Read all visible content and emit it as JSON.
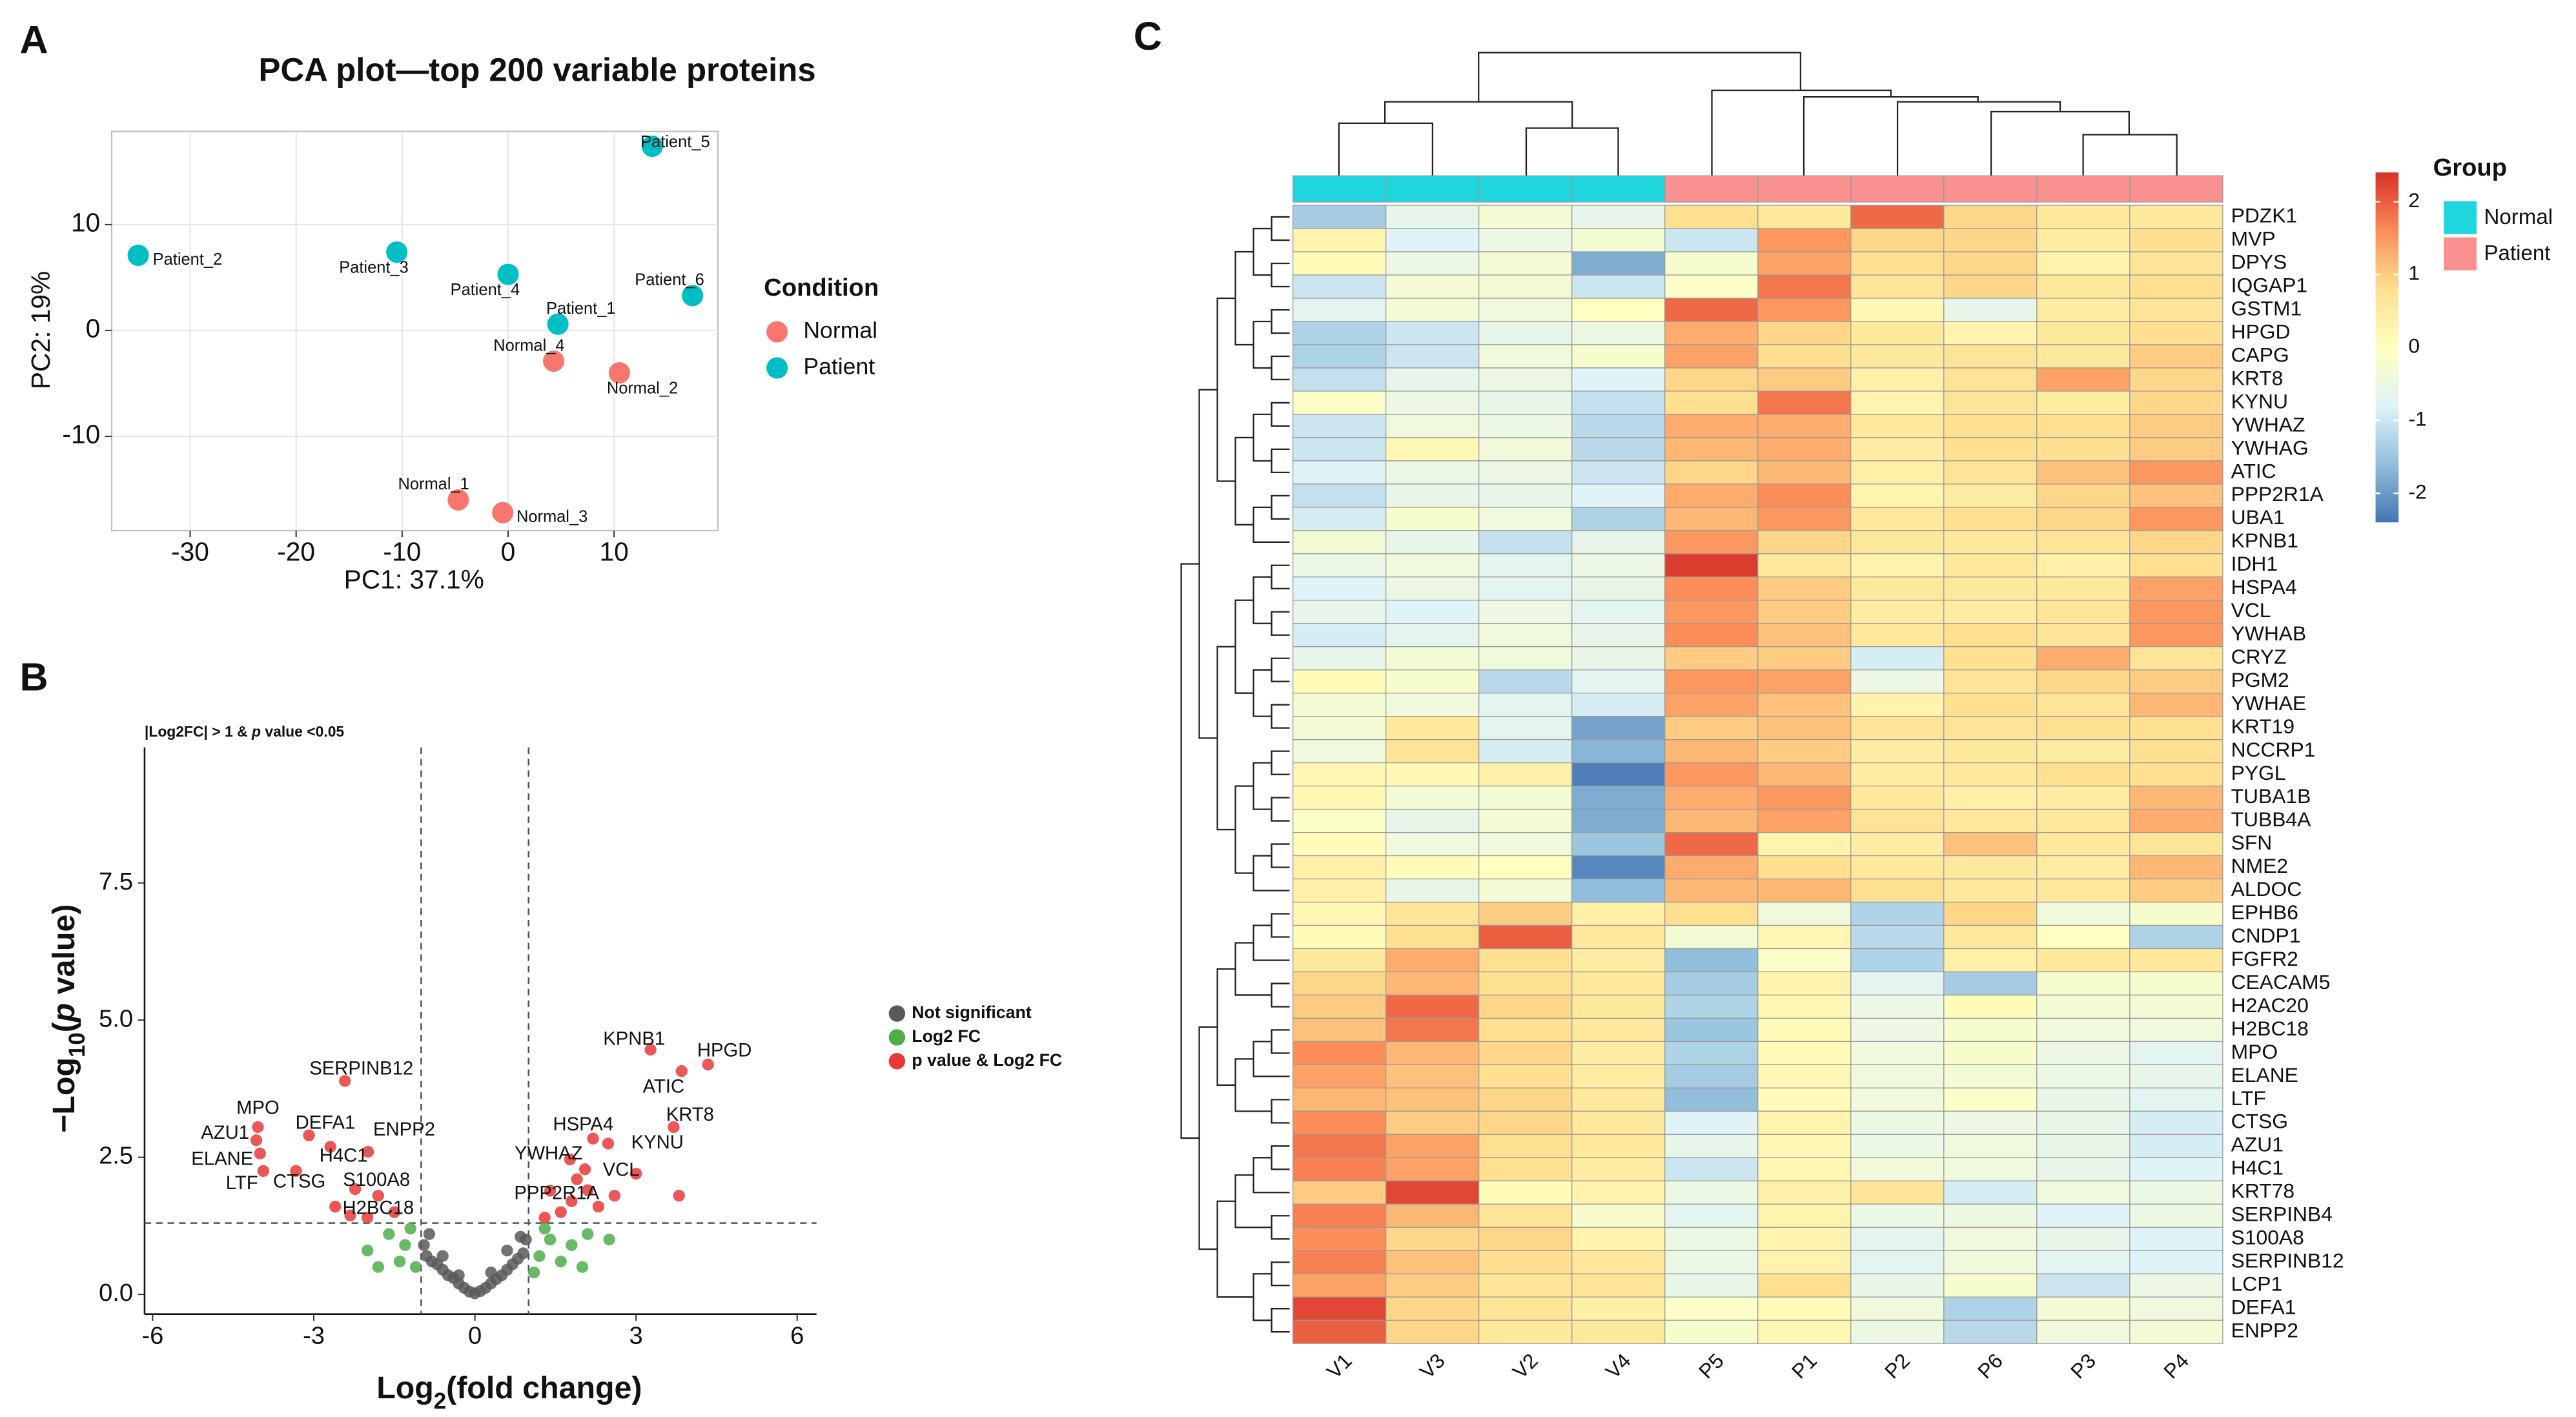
{
  "chart_data": [
    {
      "type": "scatter",
      "panel_label": "A",
      "title": "PCA plot—top 200 variable proteins",
      "xlabel": "PC1: 37.1%",
      "ylabel": "PC2: 19%",
      "xlim": [
        -37.4,
        19.8
      ],
      "ylim": [
        -18.9,
        18.8
      ],
      "xticks": [
        -30,
        -20,
        -10,
        0,
        10
      ],
      "yticks": [
        -10,
        0,
        10
      ],
      "grid": true,
      "legend_title": "Condition",
      "series": [
        {
          "name": "Normal",
          "color": "#f8766d",
          "labels": [
            "Normal_1",
            "Normal_2",
            "Normal_3",
            "Normal_4"
          ],
          "x": [
            -4.7,
            10.5,
            -0.5,
            4.3
          ],
          "values": [
            -16.0,
            -4.0,
            -17.2,
            -2.9
          ]
        },
        {
          "name": "Patient",
          "color": "#00bfc4",
          "labels": [
            "Patient_1",
            "Patient_2",
            "Patient_3",
            "Patient_4",
            "Patient_5",
            "Patient_6"
          ],
          "x": [
            4.7,
            -34.9,
            -10.5,
            0,
            13.6,
            17.4
          ],
          "values": [
            0.6,
            7.1,
            7.4,
            5.3,
            17.4,
            3.3
          ]
        }
      ]
    },
    {
      "type": "scatter",
      "panel_label": "B",
      "title": [
        "|Log2FC| > 1 & ",
        "p",
        " value <0.05"
      ],
      "xlabel": [
        "Log",
        "2",
        "(fold change)"
      ],
      "ylabel": [
        "−Log",
        "10",
        "(",
        "p",
        " value)"
      ],
      "xlim": [
        -6.15,
        6.36
      ],
      "ylim": [
        -0.36,
        9.97
      ],
      "xticks": [
        -6,
        -3,
        0,
        3,
        6
      ],
      "yticks": [
        {
          "value": 0,
          "label": "0.0"
        },
        2.5,
        {
          "value": 5,
          "label": "5.0"
        },
        7.5
      ],
      "grid": false,
      "vlines": [
        -1,
        1
      ],
      "hline": 1.3,
      "series": [
        {
          "name": "Not significant",
          "color": "#595959",
          "x": [
            -0.95,
            -0.9,
            -0.85,
            -0.8,
            -0.7,
            -0.6,
            -0.6,
            -0.5,
            -0.4,
            -0.3,
            -0.3,
            -0.2,
            -0.1,
            0,
            0.1,
            0.2,
            0.3,
            0.3,
            0.4,
            0.5,
            0.6,
            0.6,
            0.7,
            0.8,
            0.85,
            0.9,
            0.95
          ],
          "values": [
            0.9,
            0.7,
            1.1,
            0.6,
            0.55,
            0.45,
            0.7,
            0.35,
            0.3,
            0.2,
            0.35,
            0.12,
            0.05,
            0.02,
            0.06,
            0.12,
            0.2,
            0.4,
            0.28,
            0.35,
            0.45,
            0.8,
            0.55,
            0.65,
            1.05,
            0.75,
            1.0
          ]
        },
        {
          "name": "Log2 FC",
          "color": "#4fae4a",
          "x": [
            -1.3,
            -1.6,
            -1.4,
            -2.0,
            -1.2,
            -1.8,
            -1.1,
            1.2,
            1.4,
            1.6,
            1.8,
            2.1,
            1.3,
            2.0,
            2.5,
            1.1
          ],
          "values": [
            0.9,
            1.1,
            0.6,
            0.8,
            1.2,
            0.5,
            0.5,
            0.7,
            1.0,
            0.6,
            0.9,
            1.1,
            1.2,
            0.5,
            1.0,
            0.4
          ]
        },
        {
          "name": "p value & Log2 FC",
          "color": "#e8393a",
          "labels": [
            "KPNB1",
            "HPGD",
            "ATIC",
            "KRT8",
            "HSPA4",
            "KYNU",
            "YWHAZ",
            "VCL",
            "PPP2R1A",
            "SERPINB12",
            "MPO",
            "AZU1",
            "DEFA1",
            "H4C1",
            "ENPP2",
            "ELANE",
            "LTF",
            "CTSG",
            "S100A8",
            "H2BC18",
            null,
            null,
            null,
            null,
            null,
            null,
            null,
            null,
            null,
            null,
            null,
            null,
            null
          ],
          "x": [
            3.27,
            4.34,
            3.85,
            3.7,
            2.2,
            2.48,
            1.77,
            2.05,
            1.4,
            -2.42,
            -4.04,
            -4.07,
            -3.09,
            -2.69,
            -1.99,
            -4.0,
            -3.94,
            -3.33,
            -2.23,
            -2.32,
            1.6,
            1.8,
            2.1,
            2.6,
            3.0,
            1.3,
            2.3,
            1.9,
            -1.5,
            -2.0,
            -1.8,
            -2.6,
            3.8
          ],
          "values": [
            4.46,
            4.19,
            4.07,
            3.05,
            2.84,
            2.75,
            2.46,
            2.28,
            1.89,
            3.89,
            3.05,
            2.81,
            2.9,
            2.69,
            2.6,
            2.57,
            2.25,
            2.25,
            1.92,
            1.44,
            1.5,
            1.7,
            1.9,
            1.8,
            2.2,
            1.4,
            1.6,
            2.1,
            1.5,
            1.4,
            1.8,
            1.6,
            1.8
          ]
        }
      ]
    },
    {
      "type": "heatmap",
      "panel_label": "C",
      "columns": [
        "V1",
        "V3",
        "V2",
        "V4",
        "P5",
        "P1",
        "P2",
        "P6",
        "P3",
        "P4"
      ],
      "column_groups": [
        "Normal",
        "Normal",
        "Normal",
        "Normal",
        "Patient",
        "Patient",
        "Patient",
        "Patient",
        "Patient",
        "Patient"
      ],
      "legend_title": "Group",
      "groups": [
        {
          "name": "Normal",
          "color": "#1fd6de"
        },
        {
          "name": "Patient",
          "color": "#f99191"
        }
      ],
      "zlim": [
        -2.4,
        2.4
      ],
      "zticks": [
        -2,
        -1,
        0,
        1,
        2
      ],
      "colors": [
        "#4575b4",
        "#91bfdb",
        "#e0f3f8",
        "#ffffbf",
        "#fee090",
        "#fc8d59",
        "#d73027"
      ],
      "rows": [
        "PDZK1",
        "MVP",
        "DPYS",
        "IQGAP1",
        "GSTM1",
        "HPGD",
        "CAPG",
        "KRT8",
        "KYNU",
        "YWHAZ",
        "YWHAG",
        "ATIC",
        "PPP2R1A",
        "UBA1",
        "KPNB1",
        "IDH1",
        "HSPA4",
        "VCL",
        "YWHAB",
        "CRYZ",
        "PGM2",
        "YWHAE",
        "KRT19",
        "NCCRP1",
        "PYGL",
        "TUBA1B",
        "TUBB4A",
        "SFN",
        "NME2",
        "ALDOC",
        "EPHB6",
        "CNDP1",
        "FGFR2",
        "CEACAM5",
        "H2AC20",
        "H2BC18",
        "MPO",
        "ELANE",
        "LTF",
        "CTSG",
        "AZU1",
        "H4C1",
        "KRT78",
        "SERPINB4",
        "S100A8",
        "SERPINB12",
        "LCP1",
        "DEFA1",
        "ENPP2"
      ],
      "values": [
        [
          -1.4,
          -0.6,
          -0.3,
          -0.6,
          0.8,
          0.6,
          1.9,
          0.9,
          0.6,
          0.6
        ],
        [
          0.3,
          -0.8,
          -0.5,
          -0.3,
          -1.0,
          1.5,
          0.9,
          0.9,
          0.5,
          0.8
        ],
        [
          0.1,
          -0.5,
          -0.3,
          -1.8,
          -0.2,
          1.4,
          0.8,
          0.9,
          0.3,
          0.7
        ],
        [
          -1.0,
          -0.3,
          -0.3,
          -1.0,
          -0.1,
          1.8,
          0.7,
          0.9,
          0.6,
          0.8
        ],
        [
          -0.7,
          -0.3,
          -0.4,
          0.0,
          1.9,
          1.5,
          0.2,
          -0.6,
          0.5,
          0.7
        ],
        [
          -1.3,
          -1.0,
          -0.6,
          -0.5,
          1.3,
          0.9,
          0.6,
          0.3,
          0.6,
          0.8
        ],
        [
          -1.3,
          -1.0,
          -0.4,
          -0.2,
          1.4,
          0.8,
          0.6,
          0.7,
          0.6,
          1.0
        ],
        [
          -1.1,
          -0.6,
          -0.5,
          -0.8,
          0.9,
          1.0,
          0.4,
          0.7,
          1.4,
          0.9
        ],
        [
          -0.1,
          -0.5,
          -0.6,
          -1.1,
          0.8,
          1.8,
          0.3,
          0.7,
          0.5,
          0.9
        ],
        [
          -1.0,
          -0.4,
          -0.5,
          -1.2,
          1.3,
          1.3,
          0.6,
          0.8,
          0.8,
          1.0
        ],
        [
          -1.0,
          0.2,
          -0.4,
          -1.2,
          1.2,
          1.3,
          0.5,
          0.8,
          0.8,
          1.0
        ],
        [
          -0.8,
          -0.5,
          -0.5,
          -1.0,
          0.9,
          1.2,
          0.4,
          0.7,
          1.1,
          1.5
        ],
        [
          -1.1,
          -0.6,
          -0.6,
          -0.8,
          1.3,
          1.6,
          0.3,
          0.5,
          0.9,
          1.1
        ],
        [
          -0.9,
          -0.2,
          -0.4,
          -1.3,
          1.2,
          1.5,
          0.6,
          0.8,
          0.9,
          1.5
        ],
        [
          -0.3,
          -0.6,
          -1.1,
          -0.6,
          1.5,
          0.9,
          0.6,
          0.6,
          0.7,
          0.9
        ],
        [
          -0.5,
          -0.4,
          -0.7,
          -0.5,
          2.3,
          0.6,
          0.3,
          0.6,
          0.4,
          0.8
        ],
        [
          -0.8,
          -0.5,
          -0.7,
          -0.6,
          1.6,
          1.0,
          0.6,
          0.6,
          0.6,
          1.4
        ],
        [
          -0.6,
          -0.8,
          -0.5,
          -0.7,
          1.5,
          1.0,
          0.5,
          0.5,
          0.7,
          1.5
        ],
        [
          -0.9,
          -0.7,
          -0.4,
          -0.6,
          1.6,
          1.1,
          0.6,
          0.8,
          0.7,
          1.5
        ],
        [
          -0.6,
          -0.3,
          -0.4,
          -0.6,
          1.0,
          1.0,
          -0.9,
          0.8,
          1.3,
          0.7
        ],
        [
          0.1,
          -0.2,
          -1.2,
          -0.7,
          1.5,
          1.4,
          -0.5,
          0.7,
          0.9,
          1.0
        ],
        [
          -0.3,
          -0.4,
          -0.7,
          -0.9,
          1.4,
          1.1,
          0.3,
          0.8,
          0.7,
          1.2
        ],
        [
          -0.3,
          0.6,
          -0.7,
          -1.9,
          1.0,
          1.1,
          0.7,
          0.7,
          0.8,
          0.8
        ],
        [
          -0.4,
          0.7,
          -0.9,
          -1.7,
          1.2,
          1.0,
          0.5,
          0.6,
          0.5,
          0.8
        ],
        [
          0.2,
          0.2,
          0.4,
          -2.3,
          1.5,
          1.2,
          0.5,
          0.6,
          0.8,
          0.8
        ],
        [
          0.2,
          -0.3,
          -0.3,
          -1.8,
          1.3,
          1.5,
          0.6,
          0.4,
          0.5,
          1.2
        ],
        [
          -0.1,
          -0.6,
          -0.3,
          -1.8,
          1.2,
          1.4,
          0.7,
          0.6,
          0.6,
          1.3
        ],
        [
          0.1,
          -0.4,
          -0.4,
          -1.5,
          1.9,
          0.3,
          0.5,
          1.1,
          0.6,
          0.7
        ],
        [
          0.4,
          0.1,
          0.0,
          -2.2,
          1.3,
          0.8,
          0.6,
          0.6,
          0.5,
          1.2
        ],
        [
          0.4,
          -0.6,
          -0.3,
          -1.6,
          1.2,
          1.2,
          0.8,
          0.6,
          0.6,
          1.0
        ],
        [
          0.2,
          0.7,
          1.0,
          0.4,
          0.8,
          -0.4,
          -1.3,
          0.9,
          -0.4,
          -0.2
        ],
        [
          0.1,
          0.8,
          2.0,
          0.6,
          -0.3,
          0.2,
          -1.2,
          0.6,
          0.0,
          -1.3
        ],
        [
          0.6,
          1.3,
          0.8,
          0.5,
          -1.6,
          -0.1,
          -1.3,
          0.4,
          0.6,
          0.6
        ],
        [
          0.9,
          1.2,
          0.8,
          0.6,
          -1.4,
          0.3,
          -0.7,
          -1.4,
          -0.2,
          -0.2
        ],
        [
          1.0,
          1.9,
          0.9,
          0.6,
          -1.3,
          0.2,
          -0.5,
          0.1,
          -0.3,
          -0.3
        ],
        [
          1.1,
          1.8,
          0.8,
          0.6,
          -1.5,
          0.1,
          -0.5,
          -0.2,
          -0.4,
          -0.4
        ],
        [
          1.6,
          1.2,
          0.9,
          0.5,
          -1.3,
          0.1,
          -0.4,
          -0.2,
          -0.5,
          -0.7
        ],
        [
          1.4,
          1.1,
          0.8,
          0.5,
          -1.4,
          0.2,
          -0.4,
          -0.3,
          -0.5,
          -0.6
        ],
        [
          1.2,
          1.1,
          0.9,
          0.6,
          -1.6,
          0.1,
          -0.4,
          -0.1,
          -0.6,
          -0.7
        ],
        [
          1.6,
          1.0,
          0.9,
          0.6,
          -0.8,
          0.3,
          -0.5,
          -0.5,
          -0.6,
          -0.9
        ],
        [
          1.8,
          1.4,
          0.8,
          0.6,
          -0.6,
          0.2,
          -0.5,
          -0.4,
          -0.6,
          -0.9
        ],
        [
          1.7,
          1.4,
          0.8,
          0.5,
          -1.0,
          0.2,
          -0.4,
          -0.4,
          -0.6,
          -0.8
        ],
        [
          1.0,
          2.2,
          0.1,
          0.3,
          -0.5,
          0.4,
          0.7,
          -0.9,
          -0.4,
          -0.5
        ],
        [
          1.7,
          1.2,
          0.7,
          -0.2,
          -0.7,
          0.3,
          -0.5,
          -0.5,
          -0.8,
          -0.5
        ],
        [
          1.6,
          0.9,
          0.9,
          0.3,
          -0.5,
          0.3,
          -0.7,
          -0.4,
          -0.6,
          -0.8
        ],
        [
          1.7,
          1.1,
          0.8,
          0.6,
          -0.5,
          0.3,
          -0.7,
          -0.4,
          -0.7,
          -0.8
        ],
        [
          1.4,
          1.0,
          0.7,
          0.7,
          -0.6,
          0.8,
          -0.6,
          -0.2,
          -1.0,
          -0.5
        ],
        [
          2.2,
          0.9,
          0.7,
          0.4,
          -0.1,
          0.1,
          -0.4,
          -1.3,
          -0.3,
          -0.4
        ],
        [
          2.0,
          0.9,
          0.6,
          0.6,
          -0.2,
          0.2,
          -0.5,
          -1.2,
          -0.4,
          -0.3
        ]
      ]
    }
  ]
}
